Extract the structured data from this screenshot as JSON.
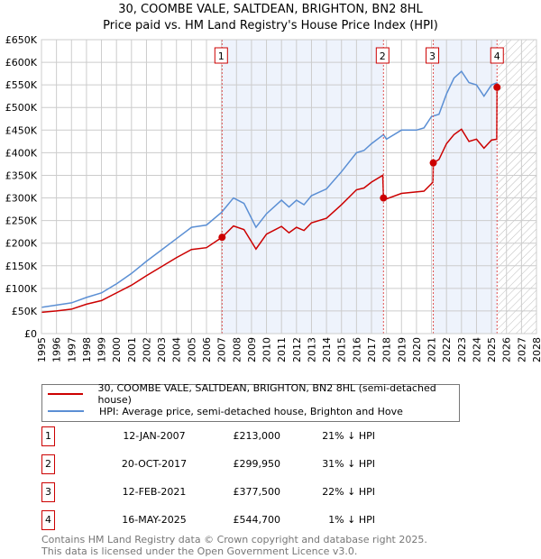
{
  "chart_data": {
    "type": "line",
    "title": "30, COOMBE VALE, SALTDEAN, BRIGHTON, BN2 8HL",
    "subtitle": "Price paid vs. HM Land Registry's House Price Index (HPI)",
    "xlim": [
      1995,
      2028
    ],
    "ylim": [
      0,
      650000
    ],
    "y_ticks": [
      0,
      50000,
      100000,
      150000,
      200000,
      250000,
      300000,
      350000,
      400000,
      450000,
      500000,
      550000,
      600000,
      650000
    ],
    "y_tick_labels": [
      "£0",
      "£50K",
      "£100K",
      "£150K",
      "£200K",
      "£250K",
      "£300K",
      "£350K",
      "£400K",
      "£450K",
      "£500K",
      "£550K",
      "£600K",
      "£650K"
    ],
    "x_ticks": [
      1995,
      1996,
      1997,
      1998,
      1999,
      2000,
      2001,
      2002,
      2003,
      2004,
      2005,
      2006,
      2007,
      2008,
      2009,
      2010,
      2011,
      2012,
      2013,
      2014,
      2015,
      2016,
      2017,
      2018,
      2019,
      2020,
      2021,
      2022,
      2023,
      2024,
      2025,
      2026,
      2027,
      2028
    ],
    "grid": true,
    "series": [
      {
        "name": "30, COOMBE VALE, SALTDEAN, BRIGHTON, BN2 8HL (semi-detached house)",
        "color": "#cc0000",
        "x": [
          1995,
          1996,
          1997,
          1998,
          1999,
          2000,
          2001,
          2002,
          2003,
          2004,
          2005,
          2006,
          2007.04,
          2007.8,
          2008.5,
          2009.3,
          2010,
          2011,
          2011.5,
          2012,
          2012.5,
          2013,
          2014,
          2015,
          2016,
          2016.5,
          2017,
          2017.75,
          2017.8,
          2018,
          2019,
          2020.5,
          2021.1,
          2021.12,
          2021.5,
          2022,
          2022.5,
          2023,
          2023.5,
          2024,
          2024.5,
          2025,
          2025.35,
          2025.37
        ],
        "y": [
          47000,
          50000,
          54000,
          65000,
          73000,
          90000,
          107000,
          128000,
          148000,
          168000,
          186000,
          190000,
          213000,
          238000,
          230000,
          187000,
          220000,
          237000,
          223000,
          235000,
          228000,
          245000,
          255000,
          285000,
          318000,
          322000,
          335000,
          350000,
          299950,
          298000,
          310000,
          315000,
          335000,
          377500,
          385000,
          420000,
          440000,
          452000,
          425000,
          430000,
          410000,
          428000,
          430000,
          544700
        ]
      },
      {
        "name": "HPI: Average price, semi-detached house, Brighton and Hove",
        "color": "#5b8fd4",
        "x": [
          1995,
          1996,
          1997,
          1998,
          1999,
          2000,
          2001,
          2002,
          2003,
          2004,
          2005,
          2006,
          2007,
          2007.8,
          2008.5,
          2009.3,
          2010,
          2011,
          2011.5,
          2012,
          2012.5,
          2013,
          2014,
          2015,
          2016,
          2016.5,
          2017,
          2017.8,
          2018,
          2019,
          2020,
          2020.5,
          2021,
          2021.5,
          2022,
          2022.5,
          2023,
          2023.5,
          2024,
          2024.5,
          2025,
          2025.4
        ],
        "y": [
          58000,
          63000,
          68000,
          80000,
          90000,
          110000,
          133000,
          160000,
          185000,
          210000,
          235000,
          240000,
          268000,
          300000,
          288000,
          235000,
          265000,
          295000,
          280000,
          295000,
          285000,
          305000,
          320000,
          358000,
          400000,
          405000,
          420000,
          440000,
          430000,
          450000,
          450000,
          455000,
          480000,
          485000,
          530000,
          565000,
          580000,
          555000,
          550000,
          525000,
          550000,
          555000
        ]
      }
    ],
    "sales": [
      {
        "label": "1",
        "x": 2007.04,
        "y": 213000
      },
      {
        "label": "2",
        "x": 2017.8,
        "y": 299950
      },
      {
        "label": "3",
        "x": 2021.12,
        "y": 377500
      },
      {
        "label": "4",
        "x": 2025.37,
        "y": 544700
      }
    ],
    "shaded_ranges": [
      [
        2007.04,
        2017.8
      ],
      [
        2021.12,
        2025.37
      ]
    ],
    "forecast_hatch_from": 2025.4,
    "legend_position": "below"
  },
  "table": [
    {
      "num": "1",
      "date": "12-JAN-2007",
      "price": "£213,000",
      "hpi": "21% ↓ HPI"
    },
    {
      "num": "2",
      "date": "20-OCT-2017",
      "price": "£299,950",
      "hpi": "31% ↓ HPI"
    },
    {
      "num": "3",
      "date": "12-FEB-2021",
      "price": "£377,500",
      "hpi": "22% ↓ HPI"
    },
    {
      "num": "4",
      "date": "16-MAY-2025",
      "price": "£544,700",
      "hpi": "1% ↓ HPI"
    }
  ],
  "footer": {
    "line1": "Contains HM Land Registry data © Crown copyright and database right 2025.",
    "line2": "This data is licensed under the Open Government Licence v3.0."
  }
}
